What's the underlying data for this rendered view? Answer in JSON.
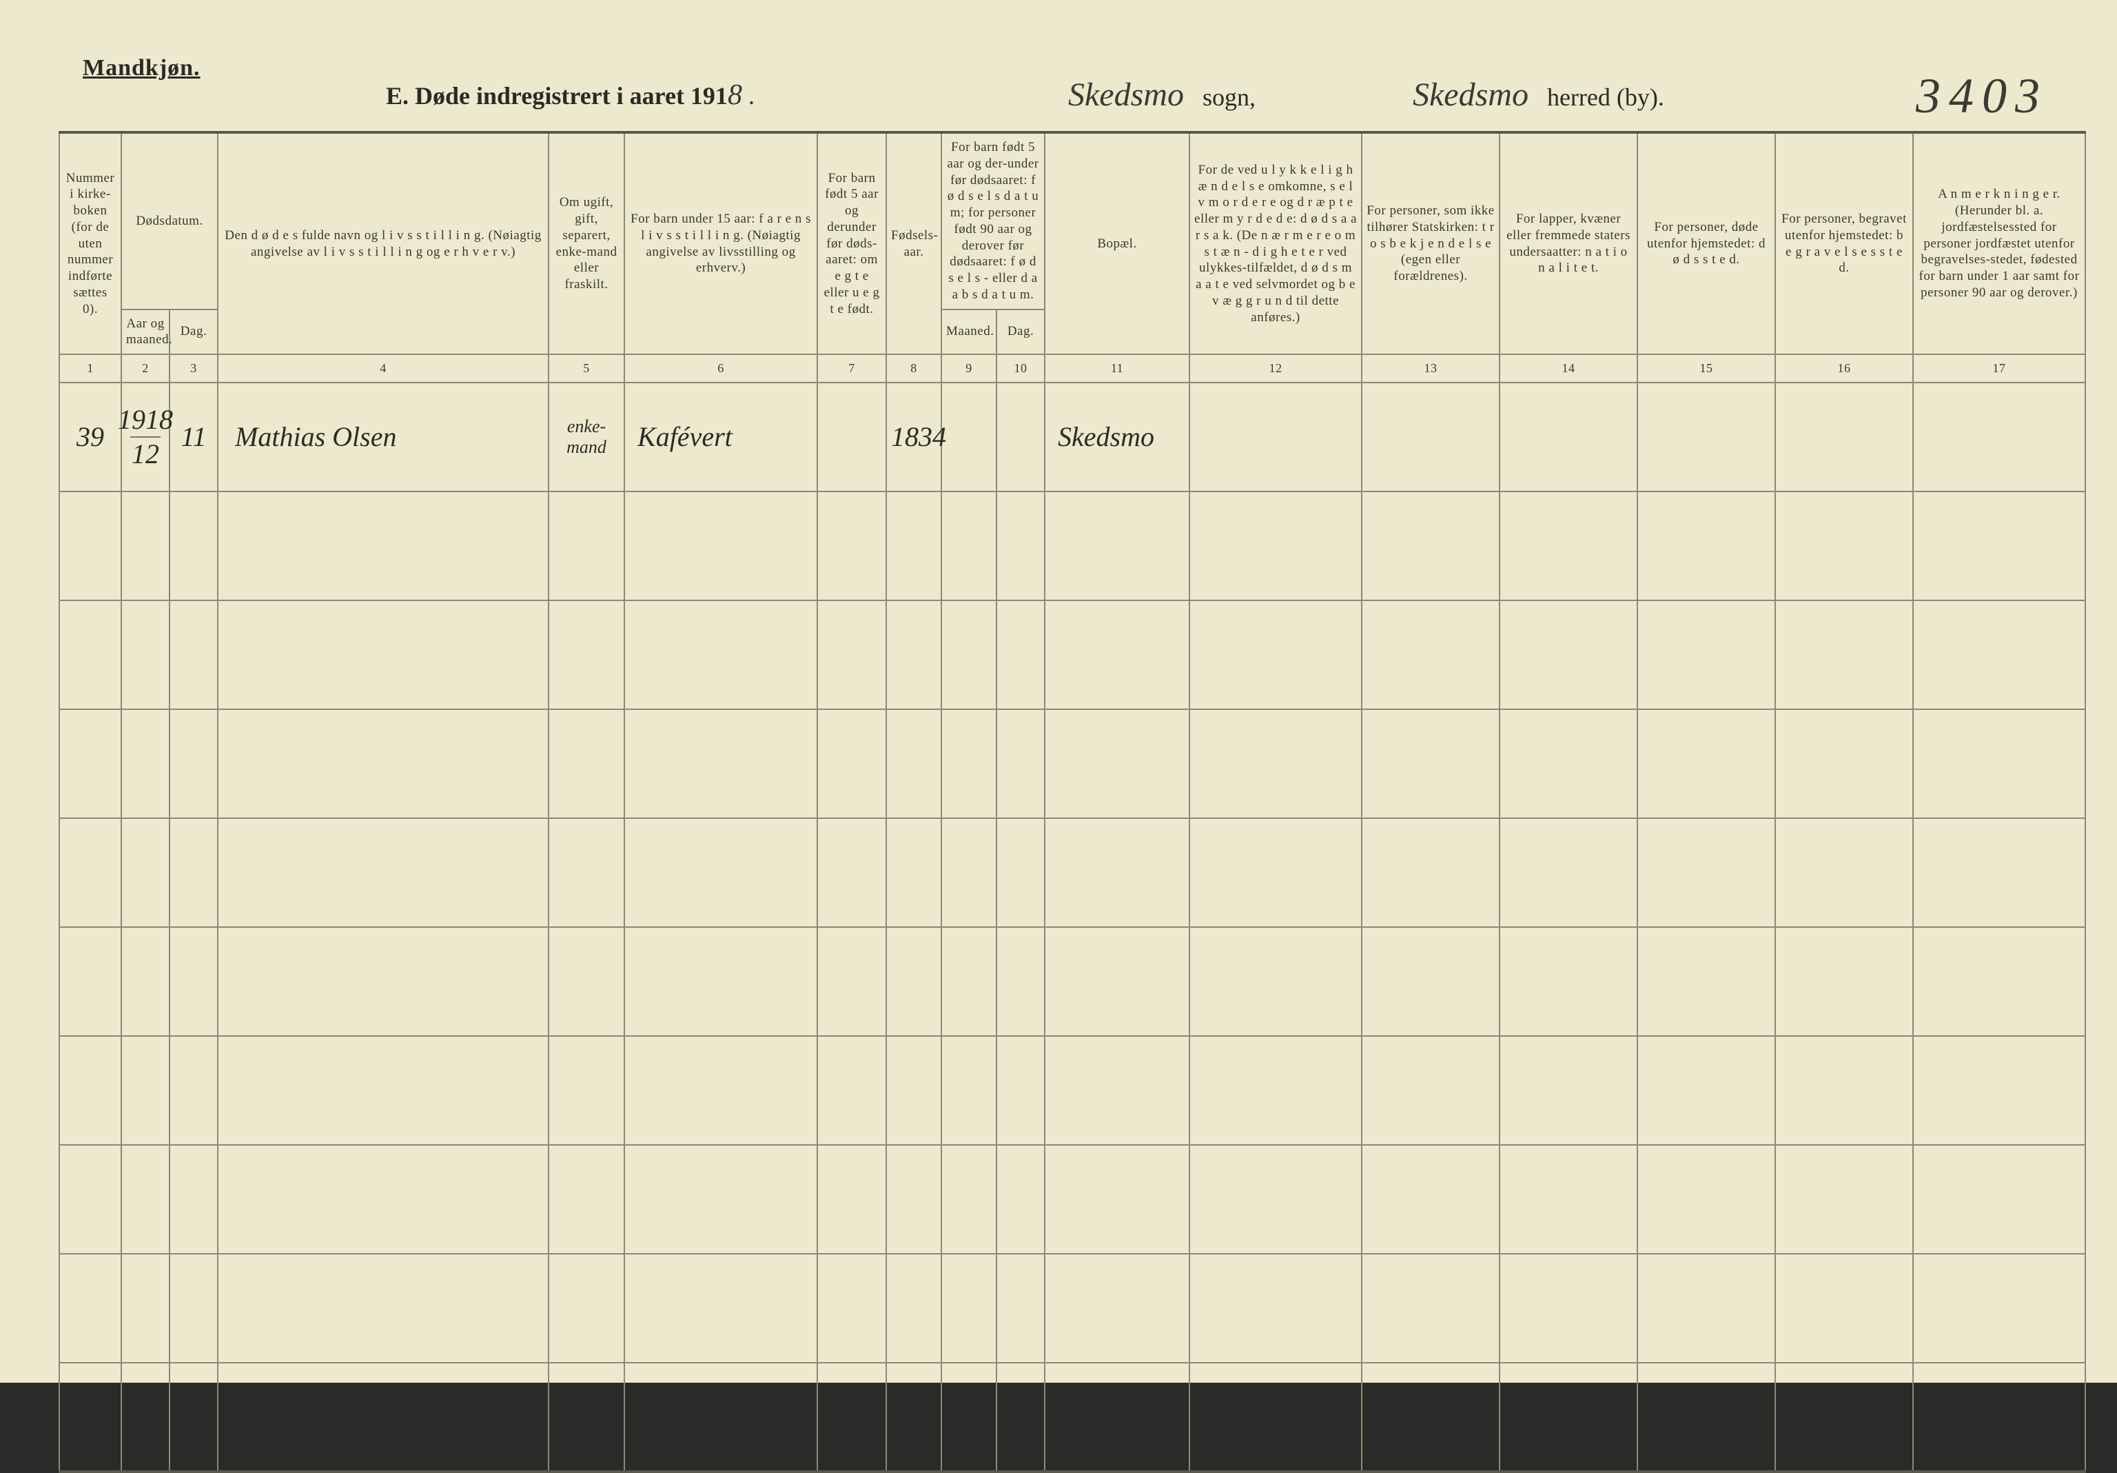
{
  "page": {
    "gender": "Mandkjøn.",
    "title_prefix": "E.   Døde indregistrert i aaret 191",
    "title_year_hand": "8",
    "title_period": " .",
    "sogn_name": "Skedsmo",
    "sogn_label": "sogn,",
    "herred_name": "Skedsmo",
    "herred_label": "herred (by).",
    "pageno": "3403"
  },
  "columns": {
    "c1": "Nummer i kirke-boken (for de uten nummer indførte sættes 0).",
    "c23_top": "Dødsdatum.",
    "c2": "Aar og maaned.",
    "c3": "Dag.",
    "c4": "Den d ø d e s fulde navn og l i v s s t i l l i n g. (Nøiagtig angivelse av l i v s s t i l l i n g og e r h v e r v.)",
    "c5": "Om ugift, gift, separert, enke-mand eller fraskilt.",
    "c6": "For barn under 15 aar: f a r e n s  l i v s s t i l l i n g. (Nøiagtig angivelse av livsstilling og erhverv.)",
    "c7": "For barn født 5 aar og derunder før døds-aaret: om e g t e eller u e g t e født.",
    "c8": "Fødsels-aar.",
    "c910_top": "For barn født 5 aar og der-under før dødsaaret: f ø d s e l s d a t u m; for personer født 90 aar og derover før dødsaaret: f ø d s e l s - eller d a a b s d a t u m.",
    "c9": "Maaned.",
    "c10": "Dag.",
    "c11": "Bopæl.",
    "c12": "For de ved u l y k k e l i g h æ n d e l s e omkomne, s e l v m o r d e r e og d r æ p t e eller m y r d e d e: d ø d s a a r s a k. (De n æ r m e r e  o m s t æ n - d i g h e t e r ved ulykkes-tilfældet, d ø d s m a a t e ved selvmordet og b e v æ g g r u n d til dette anføres.)",
    "c13": "For personer, som ikke tilhører Statskirken: t r o s b e k j e n d e l s e (egen eller forældrenes).",
    "c14": "For lapper, kvæner eller fremmede staters undersaatter: n a t i o n a l i t e t.",
    "c15": "For personer, døde utenfor hjemstedet: d ø d s s t e d.",
    "c16": "For personer, begravet utenfor hjemstedet: b e g r a v e l s e s s t e d.",
    "c17": "A n m e r k n i n g e r. (Herunder bl. a. jordfæstelsessted for personer jordfæstet utenfor begravelses-stedet, fødested for barn under 1 aar samt for personer 90 aar og derover.)"
  },
  "colnums": [
    "1",
    "2",
    "3",
    "4",
    "5",
    "6",
    "7",
    "8",
    "9",
    "10",
    "11",
    "12",
    "13",
    "14",
    "15",
    "16",
    "17"
  ],
  "rows": [
    {
      "c1": "39",
      "c2_top": "1918",
      "c2_bot": "12",
      "c3": "11",
      "c4": "Mathias Olsen",
      "c5": "enke-mand",
      "c6": "Kafévert",
      "c7": "",
      "c8": "1834",
      "c9": "",
      "c10": "",
      "c11": "Skedsmo",
      "c12": "",
      "c13": "",
      "c14": "",
      "c15": "",
      "c16": "",
      "c17": ""
    },
    {
      "c1": "",
      "c2_top": "",
      "c2_bot": "",
      "c3": "",
      "c4": "",
      "c5": "",
      "c6": "",
      "c7": "",
      "c8": "",
      "c9": "",
      "c10": "",
      "c11": "",
      "c12": "",
      "c13": "",
      "c14": "",
      "c15": "",
      "c16": "",
      "c17": ""
    },
    {
      "c1": "",
      "c2_top": "",
      "c2_bot": "",
      "c3": "",
      "c4": "",
      "c5": "",
      "c6": "",
      "c7": "",
      "c8": "",
      "c9": "",
      "c10": "",
      "c11": "",
      "c12": "",
      "c13": "",
      "c14": "",
      "c15": "",
      "c16": "",
      "c17": ""
    },
    {
      "c1": "",
      "c2_top": "",
      "c2_bot": "",
      "c3": "",
      "c4": "",
      "c5": "",
      "c6": "",
      "c7": "",
      "c8": "",
      "c9": "",
      "c10": "",
      "c11": "",
      "c12": "",
      "c13": "",
      "c14": "",
      "c15": "",
      "c16": "",
      "c17": ""
    },
    {
      "c1": "",
      "c2_top": "",
      "c2_bot": "",
      "c3": "",
      "c4": "",
      "c5": "",
      "c6": "",
      "c7": "",
      "c8": "",
      "c9": "",
      "c10": "",
      "c11": "",
      "c12": "",
      "c13": "",
      "c14": "",
      "c15": "",
      "c16": "",
      "c17": ""
    },
    {
      "c1": "",
      "c2_top": "",
      "c2_bot": "",
      "c3": "",
      "c4": "",
      "c5": "",
      "c6": "",
      "c7": "",
      "c8": "",
      "c9": "",
      "c10": "",
      "c11": "",
      "c12": "",
      "c13": "",
      "c14": "",
      "c15": "",
      "c16": "",
      "c17": ""
    },
    {
      "c1": "",
      "c2_top": "",
      "c2_bot": "",
      "c3": "",
      "c4": "",
      "c5": "",
      "c6": "",
      "c7": "",
      "c8": "",
      "c9": "",
      "c10": "",
      "c11": "",
      "c12": "",
      "c13": "",
      "c14": "",
      "c15": "",
      "c16": "",
      "c17": ""
    },
    {
      "c1": "",
      "c2_top": "",
      "c2_bot": "",
      "c3": "",
      "c4": "",
      "c5": "",
      "c6": "",
      "c7": "",
      "c8": "",
      "c9": "",
      "c10": "",
      "c11": "",
      "c12": "",
      "c13": "",
      "c14": "",
      "c15": "",
      "c16": "",
      "c17": ""
    },
    {
      "c1": "",
      "c2_top": "",
      "c2_bot": "",
      "c3": "",
      "c4": "",
      "c5": "",
      "c6": "",
      "c7": "",
      "c8": "",
      "c9": "",
      "c10": "",
      "c11": "",
      "c12": "",
      "c13": "",
      "c14": "",
      "c15": "",
      "c16": "",
      "c17": ""
    },
    {
      "c1": "",
      "c2_top": "",
      "c2_bot": "",
      "c3": "",
      "c4": "",
      "c5": "",
      "c6": "",
      "c7": "",
      "c8": "",
      "c9": "",
      "c10": "",
      "c11": "",
      "c12": "",
      "c13": "",
      "c14": "",
      "c15": "",
      "c16": "",
      "c17": ""
    }
  ]
}
